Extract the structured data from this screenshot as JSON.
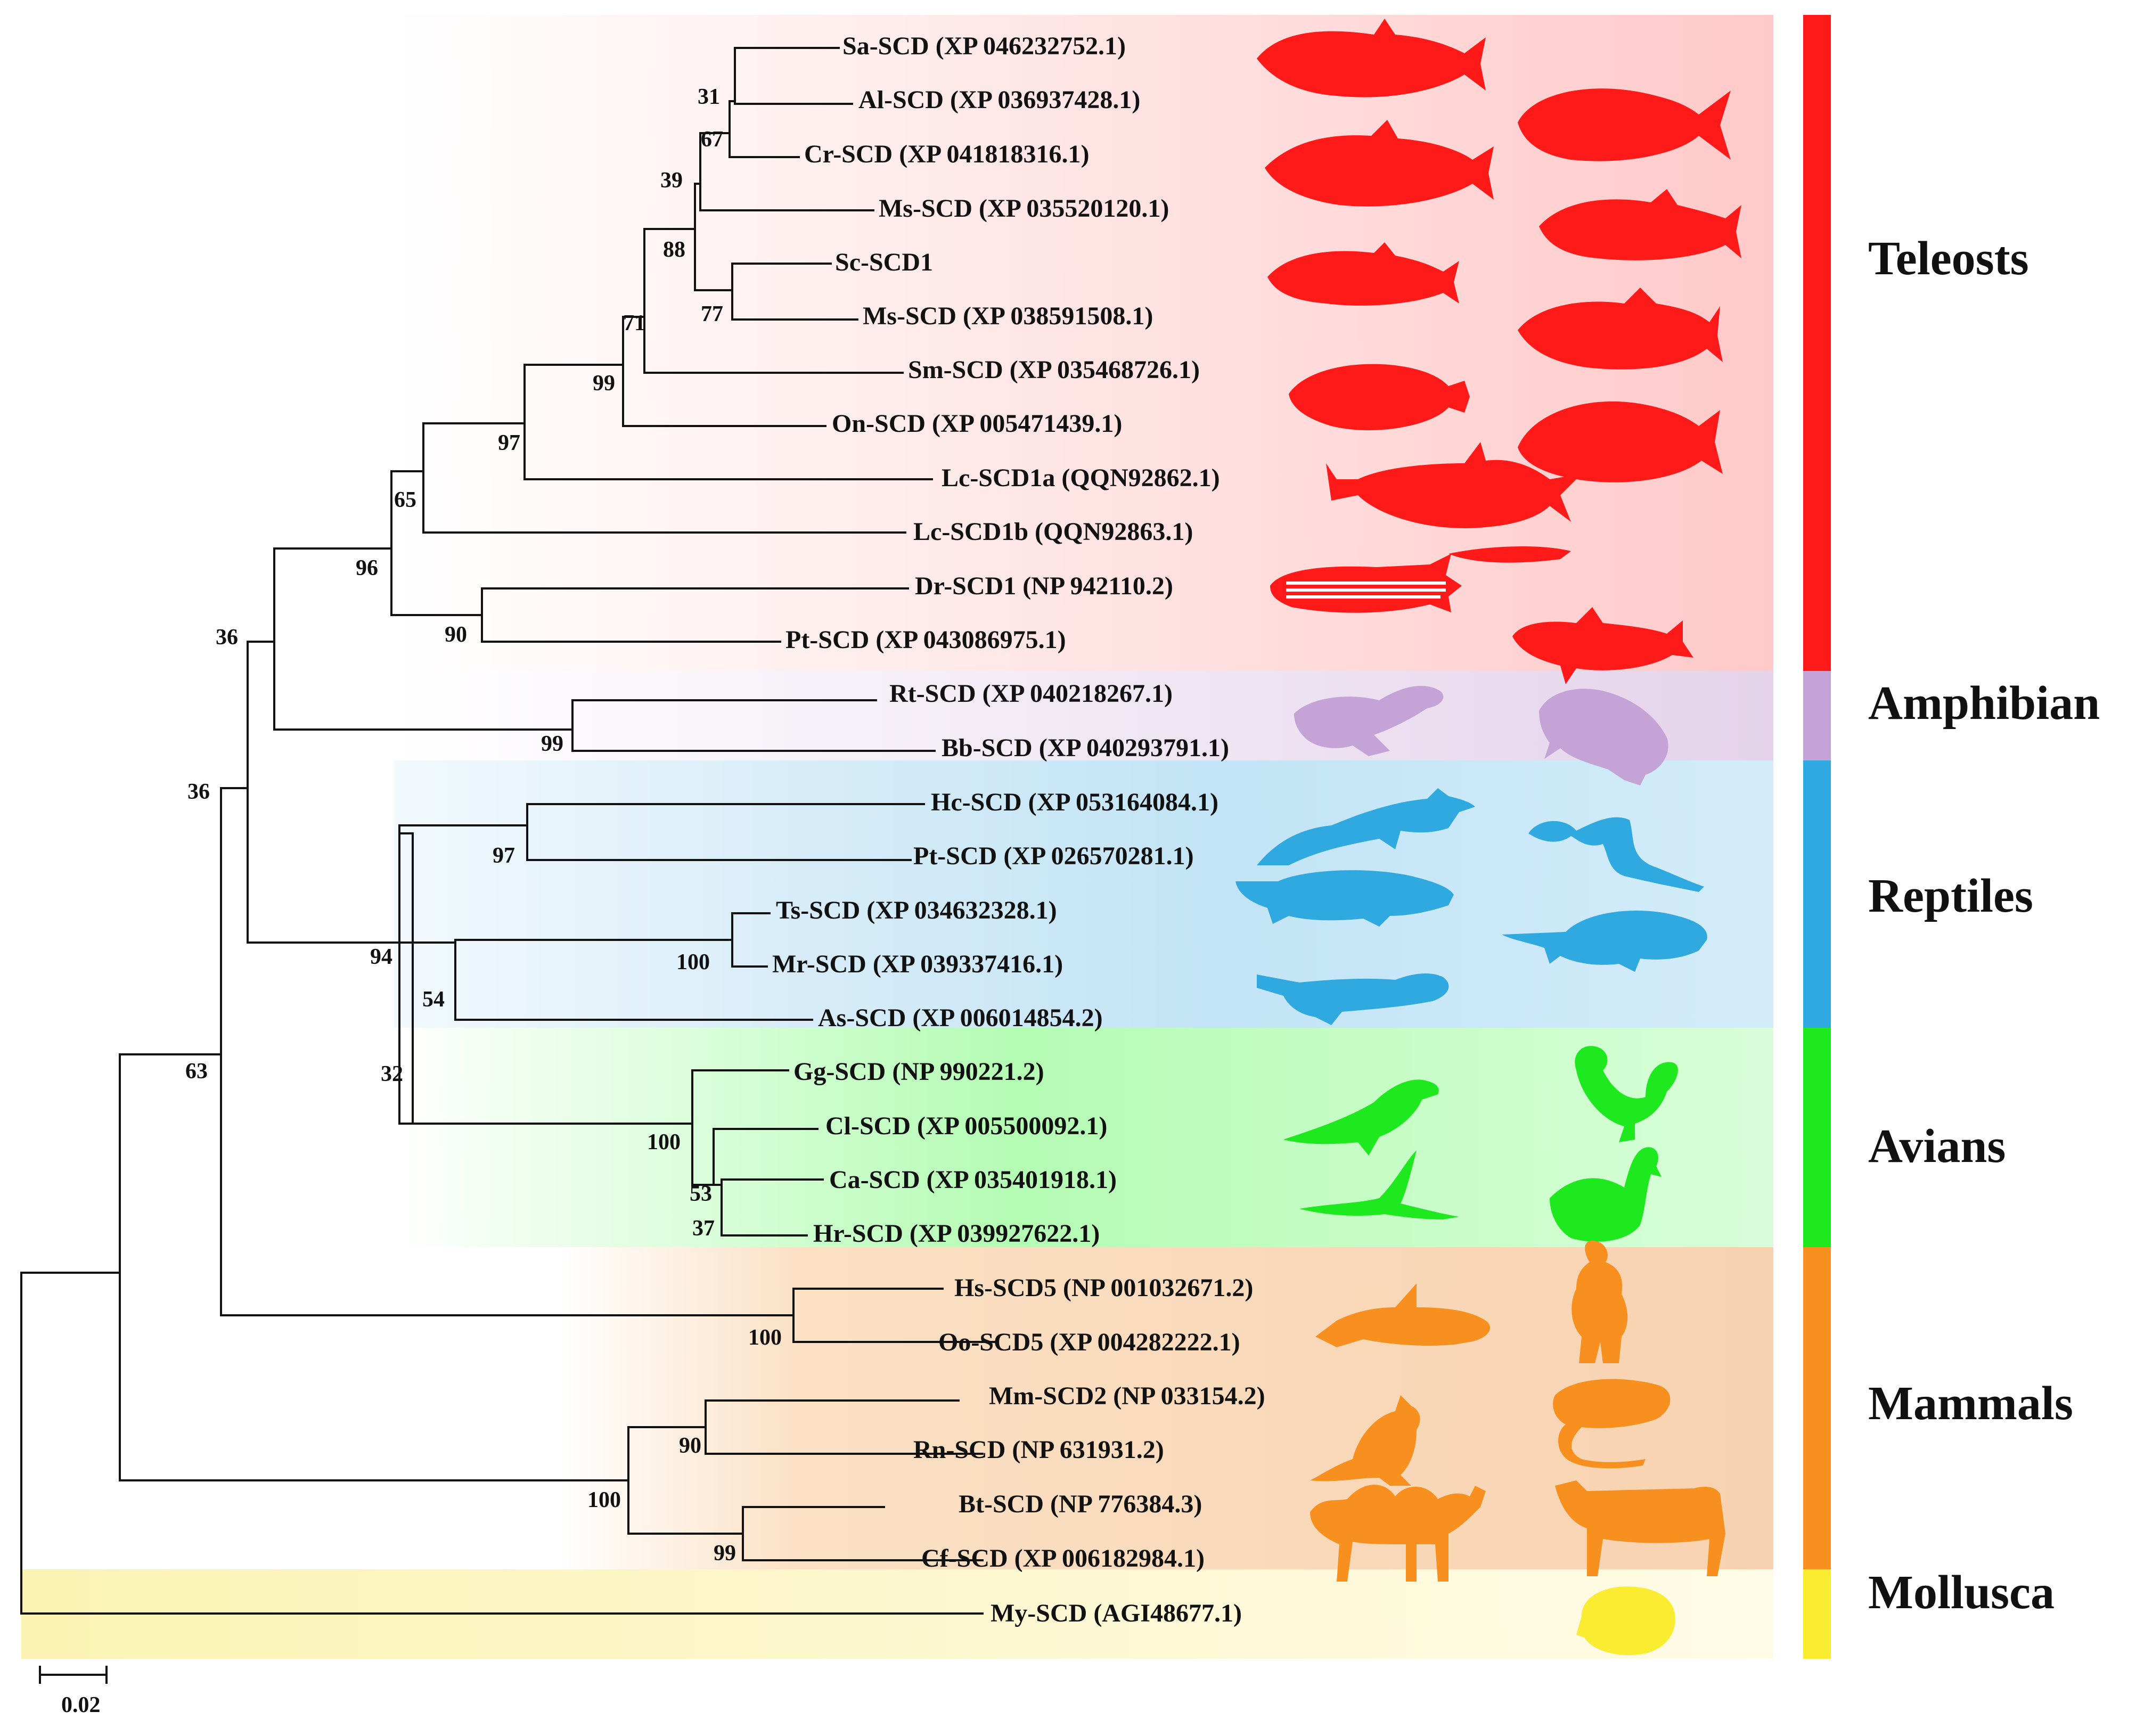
{
  "leaves": [
    {
      "id": "sa",
      "label": "Sa-SCD (XP 046232752.1)",
      "clade": "teleosts"
    },
    {
      "id": "al",
      "label": "Al-SCD (XP 036937428.1)",
      "clade": "teleosts"
    },
    {
      "id": "cr",
      "label": "Cr-SCD (XP 041818316.1)",
      "clade": "teleosts"
    },
    {
      "id": "ms1",
      "label": "Ms-SCD (XP 035520120.1)",
      "clade": "teleosts"
    },
    {
      "id": "sc",
      "label": "Sc-SCD1",
      "clade": "teleosts"
    },
    {
      "id": "ms2",
      "label": "Ms-SCD (XP 038591508.1)",
      "clade": "teleosts"
    },
    {
      "id": "sm",
      "label": "Sm-SCD (XP 035468726.1)",
      "clade": "teleosts"
    },
    {
      "id": "on",
      "label": "On-SCD (XP 005471439.1)",
      "clade": "teleosts"
    },
    {
      "id": "lca",
      "label": "Lc-SCD1a (QQN92862.1)",
      "clade": "teleosts"
    },
    {
      "id": "lcb",
      "label": "Lc-SCD1b (QQN92863.1)",
      "clade": "teleosts"
    },
    {
      "id": "dr",
      "label": "Dr-SCD1 (NP 942110.2)",
      "clade": "teleosts"
    },
    {
      "id": "pt1",
      "label": "Pt-SCD (XP 043086975.1)",
      "clade": "teleosts"
    },
    {
      "id": "rt",
      "label": "Rt-SCD (XP 040218267.1)",
      "clade": "amphibian"
    },
    {
      "id": "bb",
      "label": "Bb-SCD (XP 040293791.1)",
      "clade": "amphibian"
    },
    {
      "id": "hc",
      "label": "Hc-SCD (XP 053164084.1)",
      "clade": "reptiles"
    },
    {
      "id": "pt2",
      "label": "Pt-SCD (XP 026570281.1)",
      "clade": "reptiles"
    },
    {
      "id": "ts",
      "label": "Ts-SCD (XP 034632328.1)",
      "clade": "reptiles"
    },
    {
      "id": "mr",
      "label": "Mr-SCD (XP 039337416.1)",
      "clade": "reptiles"
    },
    {
      "id": "as",
      "label": "As-SCD (XP 006014854.2)",
      "clade": "reptiles"
    },
    {
      "id": "gg",
      "label": "Gg-SCD (NP 990221.2)",
      "clade": "avians"
    },
    {
      "id": "cl",
      "label": "Cl-SCD (XP 005500092.1)",
      "clade": "avians"
    },
    {
      "id": "ca",
      "label": "Ca-SCD (XP 035401918.1)",
      "clade": "avians"
    },
    {
      "id": "hr",
      "label": "Hr-SCD (XP 039927622.1)",
      "clade": "avians"
    },
    {
      "id": "hs",
      "label": "Hs-SCD5 (NP 001032671.2)",
      "clade": "mammals"
    },
    {
      "id": "oo",
      "label": "Oo-SCD5 (XP 004282222.1)",
      "clade": "mammals"
    },
    {
      "id": "mm",
      "label": "Mm-SCD2 (NP 033154.2)",
      "clade": "mammals"
    },
    {
      "id": "rn",
      "label": "Rn-SCD (NP 631931.2)",
      "clade": "mammals"
    },
    {
      "id": "bt",
      "label": "Bt-SCD (NP 776384.3)",
      "clade": "mammals"
    },
    {
      "id": "cf",
      "label": "Cf-SCD (XP 006182984.1)",
      "clade": "mammals"
    },
    {
      "id": "my",
      "label": "My-SCD (AGI48677.1)",
      "clade": "mollusca"
    }
  ],
  "bootstrap": [
    "31",
    "67",
    "39",
    "88",
    "77",
    "71",
    "99",
    "97",
    "65",
    "96",
    "90",
    "36",
    "99",
    "36",
    "97",
    "100",
    "54",
    "94",
    "32",
    "100",
    "53",
    "37",
    "63",
    "100",
    "90",
    "100",
    "99"
  ],
  "clades": [
    {
      "id": "teleosts",
      "label": "Teleosts",
      "color": "#ff1a1a"
    },
    {
      "id": "amphibian",
      "label": "Amphibian",
      "color": "#c6a3d6"
    },
    {
      "id": "reptiles",
      "label": "Reptiles",
      "color": "#2fa9e0"
    },
    {
      "id": "avians",
      "label": "Avians",
      "color": "#1ee81e"
    },
    {
      "id": "mammals",
      "label": "Mammals",
      "color": "#f7901e"
    },
    {
      "id": "mollusca",
      "label": "Mollusca",
      "color": "#f9ec31"
    }
  ],
  "scale_bar": {
    "value": "0.02"
  },
  "silhouettes": [
    "fish-icon",
    "frog-icon",
    "lizard-icon",
    "turtle-icon",
    "crocodile-icon",
    "bird-icon",
    "swan-icon",
    "rooster-icon",
    "orca-icon",
    "human-icon",
    "mouse-icon",
    "rat-icon",
    "camel-icon",
    "cow-icon",
    "shell-icon"
  ]
}
